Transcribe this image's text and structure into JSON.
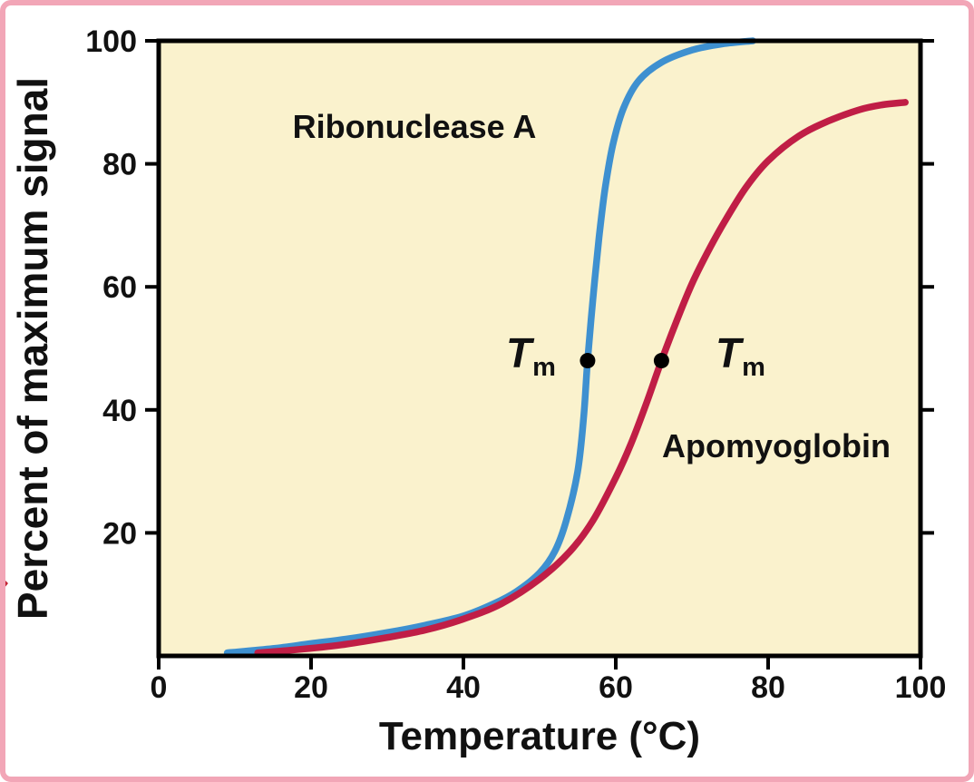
{
  "figure": {
    "frame_color": "#F2A6B7",
    "background": "#FFFFFF",
    "plot_background": "#FAF2CD",
    "axis_color": "#000000",
    "text_color": "#111111"
  },
  "chart_data": {
    "type": "line",
    "xlabel": "Temperature (°C)",
    "ylabel": "Percent of maximum signal",
    "xlim": [
      0,
      100
    ],
    "ylim": [
      0,
      100
    ],
    "x_ticks": [
      0,
      20,
      40,
      60,
      80,
      100
    ],
    "y_ticks": [
      20,
      40,
      60,
      80,
      100
    ],
    "grid": false,
    "legend_position": "inline-labels",
    "series": [
      {
        "name": "Ribonuclease A",
        "color": "#3E90D0",
        "tm_celsius": 56,
        "points": [
          [
            9,
            0.5
          ],
          [
            15,
            1.2
          ],
          [
            20,
            2
          ],
          [
            25,
            2.8
          ],
          [
            30,
            3.8
          ],
          [
            35,
            5
          ],
          [
            40,
            6.5
          ],
          [
            44,
            8.5
          ],
          [
            47,
            10.5
          ],
          [
            50,
            13.5
          ],
          [
            52,
            17
          ],
          [
            53.5,
            22
          ],
          [
            55,
            30
          ],
          [
            55.8,
            39
          ],
          [
            56.3,
            48
          ],
          [
            57,
            58
          ],
          [
            57.8,
            68
          ],
          [
            58.6,
            76
          ],
          [
            59.6,
            83
          ],
          [
            61,
            89
          ],
          [
            63,
            93.5
          ],
          [
            66,
            96.5
          ],
          [
            70,
            98.5
          ],
          [
            74,
            99.5
          ],
          [
            78,
            100
          ]
        ]
      },
      {
        "name": "Apomyoglobin",
        "color": "#C01E46",
        "tm_celsius": 66,
        "points": [
          [
            13,
            0.5
          ],
          [
            18,
            1
          ],
          [
            24,
            1.8
          ],
          [
            30,
            3
          ],
          [
            35,
            4.2
          ],
          [
            40,
            6
          ],
          [
            45,
            8.5
          ],
          [
            50,
            12.5
          ],
          [
            54,
            17
          ],
          [
            57,
            22
          ],
          [
            60,
            29
          ],
          [
            62,
            34.5
          ],
          [
            64,
            41
          ],
          [
            66,
            48
          ],
          [
            68,
            54.5
          ],
          [
            70,
            60.5
          ],
          [
            72,
            65.5
          ],
          [
            74,
            70
          ],
          [
            77,
            76
          ],
          [
            80,
            80.5
          ],
          [
            84,
            84.5
          ],
          [
            88,
            87
          ],
          [
            92,
            88.8
          ],
          [
            95,
            89.6
          ],
          [
            98,
            90
          ]
        ]
      }
    ],
    "annotations": {
      "tm_symbol": "T",
      "tm_subscript": "m",
      "tm_points": [
        {
          "series": "Ribonuclease A",
          "x": 56.3,
          "y": 48
        },
        {
          "series": "Apomyoglobin",
          "x": 66,
          "y": 48
        }
      ]
    }
  }
}
